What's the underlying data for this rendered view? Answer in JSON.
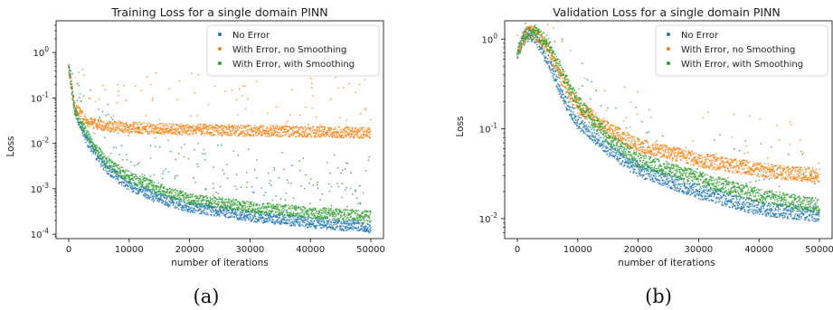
{
  "chart_data": [
    {
      "type": "scatter",
      "title": "Training Loss for a single domain PINN",
      "xlabel": "number of iterations",
      "ylabel": "Loss",
      "caption": "(a)",
      "yscale": "log",
      "xlim": [
        0,
        50000
      ],
      "ylim": [
        8e-05,
        5
      ],
      "x_ticks": [
        "0",
        "10000",
        "20000",
        "30000",
        "40000",
        "50000"
      ],
      "y_ticks": [
        {
          "exp": "-4",
          "value": 0.0001
        },
        {
          "exp": "-3",
          "value": 0.001
        },
        {
          "exp": "-2",
          "value": 0.01
        },
        {
          "exp": "-1",
          "value": 0.1
        },
        {
          "exp": "0",
          "value": 1
        }
      ],
      "legend_position": "top-right",
      "series": [
        {
          "name": "No Error",
          "color": "#1f77b4",
          "x": [
            0,
            1000,
            3000,
            6000,
            10000,
            15000,
            20000,
            30000,
            40000,
            50000
          ],
          "y": [
            0.5,
            0.05,
            0.012,
            0.003,
            0.0012,
            0.0006,
            0.0004,
            0.00025,
            0.00018,
            0.00014
          ]
        },
        {
          "name": "With Error, no Smoothing",
          "color": "#ff7f0e",
          "x": [
            0,
            1000,
            3000,
            6000,
            10000,
            15000,
            20000,
            30000,
            40000,
            50000
          ],
          "y": [
            0.5,
            0.06,
            0.03,
            0.024,
            0.022,
            0.021,
            0.02,
            0.019,
            0.018,
            0.017
          ]
        },
        {
          "name": "With Error, with Smoothing",
          "color": "#2ca02c",
          "x": [
            0,
            1000,
            3000,
            6000,
            10000,
            15000,
            20000,
            30000,
            40000,
            50000
          ],
          "y": [
            0.5,
            0.05,
            0.015,
            0.004,
            0.0018,
            0.001,
            0.0006,
            0.0004,
            0.0003,
            0.00025
          ]
        }
      ]
    },
    {
      "type": "scatter",
      "title": "Validation Loss for a single domain PINN",
      "xlabel": "number of iterations",
      "ylabel": "Loss",
      "caption": "(b)",
      "yscale": "log",
      "xlim": [
        0,
        50000
      ],
      "ylim": [
        0.006,
        1.6
      ],
      "x_ticks": [
        "0",
        "10000",
        "20000",
        "30000",
        "40000",
        "50000"
      ],
      "y_ticks": [
        {
          "exp": "-2",
          "value": 0.01
        },
        {
          "exp": "-1",
          "value": 0.1
        },
        {
          "exp": "0",
          "value": 1
        }
      ],
      "legend_position": "top-right",
      "series": [
        {
          "name": "No Error",
          "color": "#1f77b4",
          "x": [
            0,
            1000,
            2000,
            3000,
            5000,
            8000,
            10000,
            15000,
            20000,
            30000,
            40000,
            50000
          ],
          "y": [
            0.7,
            1.0,
            1.15,
            1.05,
            0.6,
            0.2,
            0.12,
            0.06,
            0.035,
            0.02,
            0.013,
            0.011
          ]
        },
        {
          "name": "With Error, no Smoothing",
          "color": "#ff7f0e",
          "x": [
            0,
            1000,
            2000,
            3000,
            5000,
            8000,
            10000,
            15000,
            20000,
            30000,
            40000,
            50000
          ],
          "y": [
            0.7,
            1.05,
            1.2,
            1.15,
            0.8,
            0.3,
            0.18,
            0.1,
            0.065,
            0.045,
            0.035,
            0.03
          ]
        },
        {
          "name": "With Error, with Smoothing",
          "color": "#2ca02c",
          "x": [
            0,
            1000,
            2000,
            3000,
            5000,
            8000,
            10000,
            15000,
            20000,
            30000,
            40000,
            50000
          ],
          "y": [
            0.7,
            1.0,
            1.15,
            1.2,
            0.9,
            0.35,
            0.2,
            0.08,
            0.045,
            0.028,
            0.018,
            0.014
          ]
        }
      ]
    }
  ]
}
